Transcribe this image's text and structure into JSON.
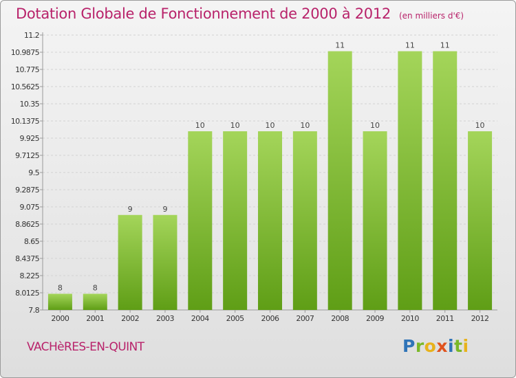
{
  "title": "Dotation Globale de Fonctionnement de 2000 à 2012",
  "unit_note": "(en milliers d'€)",
  "location": "VACHèRES-EN-QUINT",
  "logo_text": "Proxiti",
  "colors": {
    "title": "#b8226a",
    "bar_top": "#a4d55a",
    "bar_bottom": "#5f9e16",
    "axis": "#999999"
  },
  "chart_data": {
    "type": "bar",
    "categories": [
      "2000",
      "2001",
      "2002",
      "2003",
      "2004",
      "2005",
      "2006",
      "2007",
      "2008",
      "2009",
      "2010",
      "2011",
      "2012"
    ],
    "values": [
      8,
      8,
      9,
      9,
      10,
      10,
      10,
      10,
      11,
      10,
      11,
      11,
      10
    ],
    "bar_heights": [
      8,
      8,
      8.975,
      8.975,
      10.01,
      10.01,
      10.01,
      10.01,
      11.0,
      10.01,
      11.0,
      11.0,
      10.01
    ],
    "data_labels": [
      "8",
      "8",
      "9",
      "9",
      "10",
      "10",
      "10",
      "10",
      "11",
      "10",
      "11",
      "11",
      "10"
    ],
    "yticks": [
      "11.2",
      "10.9875",
      "10.775",
      "10.5625",
      "10.35",
      "10.1375",
      "9.925",
      "9.7125",
      "9.5",
      "9.2875",
      "9.075",
      "8.8625",
      "8.65",
      "8.4375",
      "8.225",
      "8.0125",
      "7.8"
    ],
    "ylim": [
      7.8,
      11.2
    ],
    "grid": true,
    "xlabel": "",
    "ylabel": ""
  }
}
